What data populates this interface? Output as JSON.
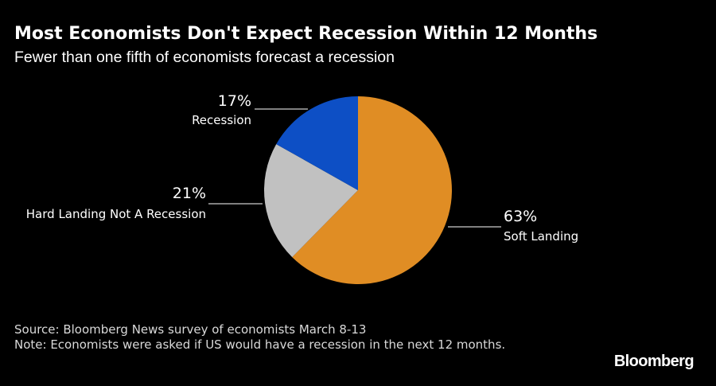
{
  "header": {
    "title": "Most Economists Don't Expect Recession Within 12 Months",
    "subtitle": "Fewer than one fifth of economists forecast a recession"
  },
  "chart_data": {
    "type": "pie",
    "title": "Most Economists Don't Expect Recession Within 12 Months",
    "subtitle": "Fewer than one fifth of economists forecast a recession",
    "slices": [
      {
        "label": "Soft Landing",
        "value": 63,
        "value_label": "63%",
        "color": "#e08d24"
      },
      {
        "label": "Hard Landing Not A Recession",
        "value": 21,
        "value_label": "21%",
        "color": "#c1c1c1"
      },
      {
        "label": "Recession",
        "value": 17,
        "value_label": "17%",
        "color": "#0d4fc5"
      }
    ]
  },
  "footer": {
    "source": "Source: Bloomberg News survey of economists March 8-13",
    "note": "Note: Economists were asked if US would have a recession in the next 12 months."
  },
  "brand": "Bloomberg"
}
